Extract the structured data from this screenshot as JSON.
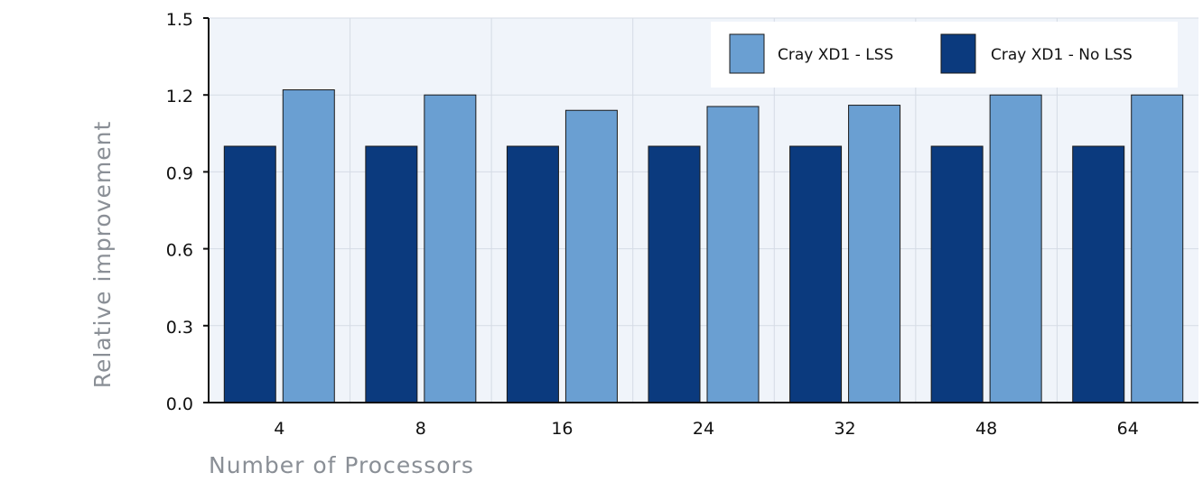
{
  "chart_data": {
    "type": "bar",
    "title": "",
    "xlabel": "Number of Processors",
    "ylabel": "Relative improvement",
    "categories": [
      "4",
      "8",
      "16",
      "24",
      "32",
      "48",
      "64"
    ],
    "series": [
      {
        "name": "Cray XD1 - No LSS",
        "color": "#0b3a7e",
        "values": [
          1.0,
          1.0,
          1.0,
          1.0,
          1.0,
          1.0,
          1.0
        ]
      },
      {
        "name": "Cray XD1 - LSS",
        "color": "#6a9fd2",
        "values": [
          1.22,
          1.2,
          1.14,
          1.155,
          1.16,
          1.2,
          1.2
        ]
      }
    ],
    "legend_order": [
      1,
      0
    ],
    "ylim": [
      0,
      1.5
    ],
    "yticks": [
      "0.0",
      "0.3",
      "0.6",
      "0.9",
      "1.2",
      "1.5"
    ],
    "grid": true,
    "legend_position": "top-right",
    "background_color": "#f0f4fa",
    "grid_color": "#d5dbe5"
  }
}
